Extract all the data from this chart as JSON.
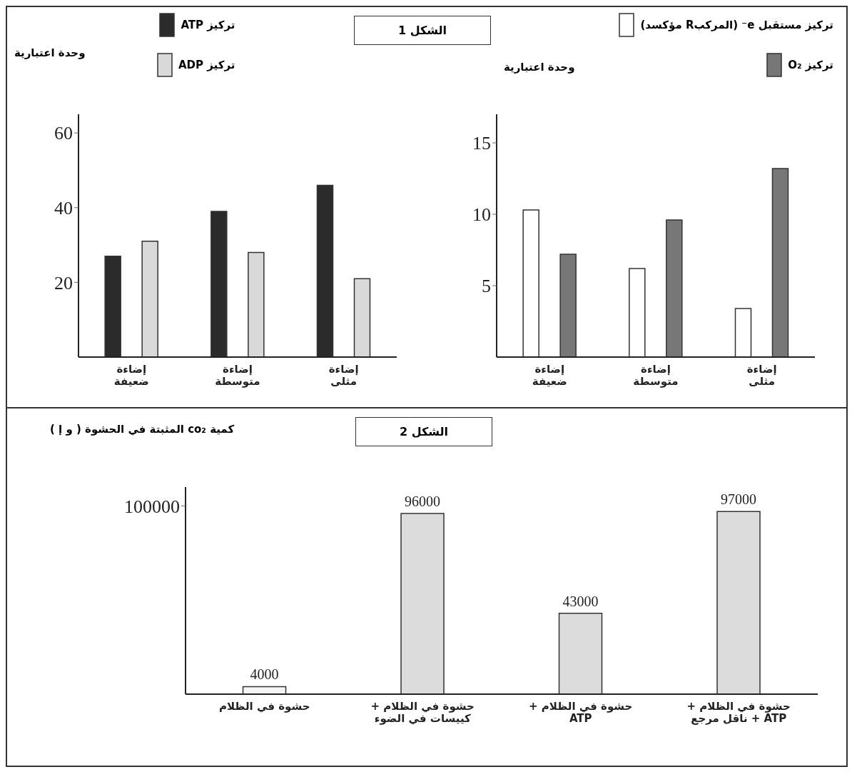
{
  "chart_data": [
    {
      "type": "bar",
      "title": "الشكل 1",
      "ylabel": "وحدة اعتبارية",
      "categories": [
        "إضاءة ضعيفة",
        "إضاءة متوسطة",
        "إضاءة مثلى"
      ],
      "series": [
        {
          "name": "تركيز ATP",
          "color": "#2b2b2b",
          "values": [
            27,
            39,
            46
          ]
        },
        {
          "name": "تركيز ADP",
          "color": "#d9d9d9",
          "values": [
            31,
            28,
            21
          ]
        }
      ],
      "ylim": [
        0,
        65
      ],
      "yticks": [
        20,
        40,
        60
      ],
      "legend": "top",
      "grid": false
    },
    {
      "type": "bar",
      "ylabel": "وحدة اعتبارية",
      "categories": [
        "إضاءة ضعيفة",
        "إضاءة متوسطة",
        "إضاءة مثلى"
      ],
      "series": [
        {
          "name": "تركيز مستقبل e⁻ (المركبR مؤكسد)",
          "color": "#ffffff",
          "values": [
            10.3,
            6.2,
            3.4
          ]
        },
        {
          "name": "تركيز O₂",
          "color": "#777777",
          "values": [
            7.2,
            9.6,
            13.2
          ]
        }
      ],
      "ylim": [
        0,
        17
      ],
      "yticks": [
        5,
        10,
        15
      ],
      "legend": "top right",
      "grid": false
    },
    {
      "type": "bar",
      "title": "الشكل 2",
      "ylabel": "كمية co₂ المثبتة في الحشوة ( و إ )",
      "categories": [
        "حشوة في الظلام",
        "حشوة في الظلام + كييسات في الضوء",
        "حشوة في الظلام + ATP",
        "حشوة في الظلام + ATP + ناقل مرجع"
      ],
      "values": [
        4000,
        96000,
        43000,
        97000
      ],
      "colors": [
        "#f5f5f5",
        "#dcdcdc",
        "#dcdcdc",
        "#dcdcdc"
      ],
      "ylim": [
        0,
        110000
      ],
      "yticks": [
        100000
      ],
      "data_labels": true,
      "legend": false,
      "grid": false
    }
  ]
}
